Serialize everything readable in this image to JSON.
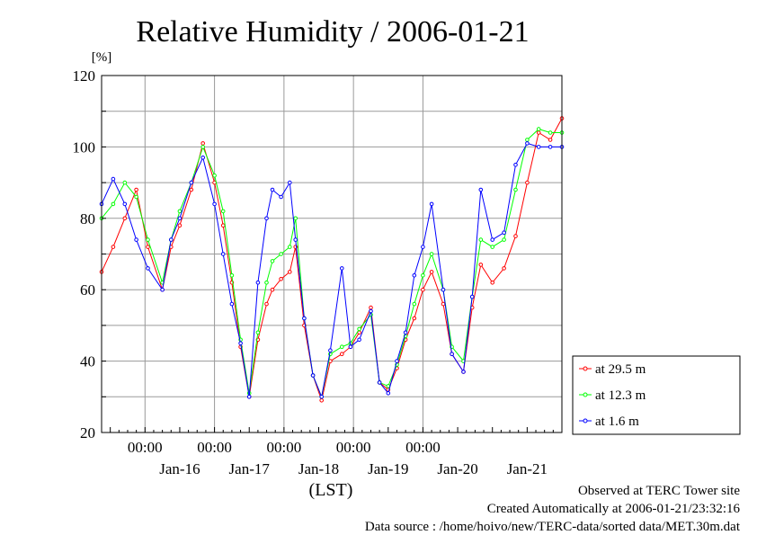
{
  "chart_data": {
    "type": "line",
    "title": "Relative Humidity / 2006-01-21",
    "ylabel": "[%]",
    "xlabel": "(LST)",
    "ylim": [
      20,
      120
    ],
    "yticks": [
      20,
      40,
      60,
      80,
      100,
      120
    ],
    "xlim": [
      "2006-01-15 09:00",
      "2006-01-21 24:00"
    ],
    "time_tick_labels": [
      "00:00",
      "00:00",
      "00:00",
      "00:00",
      "00:00"
    ],
    "day_labels": [
      "Jan-16",
      "Jan-17",
      "Jan-18",
      "Jan-19",
      "Jan-20",
      "Jan-21"
    ],
    "grid": true,
    "legend_position": "bottom-right-outside",
    "series": [
      {
        "name": "at 29.5 m",
        "color": "#ff0000",
        "x": [
          "2006-01-15 09:00",
          "2006-01-15 13:00",
          "2006-01-15 17:00",
          "2006-01-15 21:00",
          "2006-01-16 01:00",
          "2006-01-16 06:00",
          "2006-01-16 09:00",
          "2006-01-16 12:00",
          "2006-01-16 16:00",
          "2006-01-16 20:00",
          "2006-01-17 00:00",
          "2006-01-17 03:00",
          "2006-01-17 06:00",
          "2006-01-17 09:00",
          "2006-01-17 12:00",
          "2006-01-17 15:00",
          "2006-01-17 18:00",
          "2006-01-17 20:00",
          "2006-01-17 23:00",
          "2006-01-18 02:00",
          "2006-01-18 04:00",
          "2006-01-18 07:00",
          "2006-01-18 10:00",
          "2006-01-18 13:00",
          "2006-01-18 16:00",
          "2006-01-18 20:00",
          "2006-01-18 23:00",
          "2006-01-19 02:00",
          "2006-01-19 06:00",
          "2006-01-19 09:00",
          "2006-01-19 12:00",
          "2006-01-19 15:00",
          "2006-01-19 18:00",
          "2006-01-19 21:00",
          "2006-01-20 00:00",
          "2006-01-20 03:00",
          "2006-01-20 07:00",
          "2006-01-20 10:00",
          "2006-01-20 14:00",
          "2006-01-20 17:00",
          "2006-01-20 20:00",
          "2006-01-21 00:00",
          "2006-01-21 04:00",
          "2006-01-21 08:00",
          "2006-01-21 12:00",
          "2006-01-21 16:00",
          "2006-01-21 20:00",
          "2006-01-21 24:00"
        ],
        "y": [
          65,
          72,
          80,
          88,
          72,
          60,
          72,
          78,
          88,
          101,
          90,
          78,
          62,
          44,
          30,
          46,
          56,
          60,
          63,
          65,
          72,
          50,
          36,
          29,
          40,
          42,
          44,
          48,
          55,
          34,
          32,
          38,
          46,
          52,
          60,
          65,
          56,
          42,
          37,
          55,
          67,
          62,
          66,
          75,
          90,
          104,
          102,
          108
        ]
      },
      {
        "name": "at 12.3 m",
        "color": "#00ff00",
        "x": [
          "2006-01-15 09:00",
          "2006-01-15 13:00",
          "2006-01-15 17:00",
          "2006-01-15 21:00",
          "2006-01-16 01:00",
          "2006-01-16 06:00",
          "2006-01-16 09:00",
          "2006-01-16 12:00",
          "2006-01-16 16:00",
          "2006-01-16 20:00",
          "2006-01-17 00:00",
          "2006-01-17 03:00",
          "2006-01-17 06:00",
          "2006-01-17 09:00",
          "2006-01-17 12:00",
          "2006-01-17 15:00",
          "2006-01-17 18:00",
          "2006-01-17 20:00",
          "2006-01-17 23:00",
          "2006-01-18 02:00",
          "2006-01-18 04:00",
          "2006-01-18 07:00",
          "2006-01-18 10:00",
          "2006-01-18 13:00",
          "2006-01-18 16:00",
          "2006-01-18 20:00",
          "2006-01-18 23:00",
          "2006-01-19 02:00",
          "2006-01-19 06:00",
          "2006-01-19 09:00",
          "2006-01-19 12:00",
          "2006-01-19 15:00",
          "2006-01-19 18:00",
          "2006-01-19 21:00",
          "2006-01-20 00:00",
          "2006-01-20 03:00",
          "2006-01-20 07:00",
          "2006-01-20 10:00",
          "2006-01-20 14:00",
          "2006-01-20 17:00",
          "2006-01-20 20:00",
          "2006-01-21 00:00",
          "2006-01-21 04:00",
          "2006-01-21 08:00",
          "2006-01-21 12:00",
          "2006-01-21 16:00",
          "2006-01-21 20:00",
          "2006-01-21 24:00"
        ],
        "y": [
          80,
          84,
          90,
          86,
          74,
          62,
          74,
          82,
          90,
          100,
          92,
          82,
          64,
          46,
          31,
          48,
          62,
          68,
          70,
          72,
          80,
          52,
          36,
          30,
          42,
          44,
          45,
          49,
          53,
          34,
          33,
          39,
          47,
          56,
          64,
          70,
          60,
          44,
          40,
          58,
          74,
          72,
          74,
          88,
          102,
          105,
          104,
          104
        ]
      },
      {
        "name": "at 1.6 m",
        "color": "#0000ff",
        "x": [
          "2006-01-15 09:00",
          "2006-01-15 13:00",
          "2006-01-15 17:00",
          "2006-01-15 21:00",
          "2006-01-16 01:00",
          "2006-01-16 06:00",
          "2006-01-16 09:00",
          "2006-01-16 12:00",
          "2006-01-16 16:00",
          "2006-01-16 20:00",
          "2006-01-17 00:00",
          "2006-01-17 03:00",
          "2006-01-17 06:00",
          "2006-01-17 09:00",
          "2006-01-17 12:00",
          "2006-01-17 15:00",
          "2006-01-17 18:00",
          "2006-01-17 20:00",
          "2006-01-17 23:00",
          "2006-01-18 02:00",
          "2006-01-18 04:00",
          "2006-01-18 07:00",
          "2006-01-18 10:00",
          "2006-01-18 13:00",
          "2006-01-18 16:00",
          "2006-01-18 20:00",
          "2006-01-18 23:00",
          "2006-01-19 02:00",
          "2006-01-19 06:00",
          "2006-01-19 09:00",
          "2006-01-19 12:00",
          "2006-01-19 15:00",
          "2006-01-19 18:00",
          "2006-01-19 21:00",
          "2006-01-20 00:00",
          "2006-01-20 03:00",
          "2006-01-20 07:00",
          "2006-01-20 10:00",
          "2006-01-20 14:00",
          "2006-01-20 17:00",
          "2006-01-20 20:00",
          "2006-01-21 00:00",
          "2006-01-21 04:00",
          "2006-01-21 08:00",
          "2006-01-21 12:00",
          "2006-01-21 16:00",
          "2006-01-21 20:00",
          "2006-01-21 24:00"
        ],
        "y": [
          84,
          91,
          84,
          74,
          66,
          60,
          74,
          80,
          90,
          97,
          84,
          70,
          56,
          45,
          30,
          62,
          80,
          88,
          86,
          90,
          74,
          52,
          36,
          30,
          43,
          66,
          44,
          46,
          54,
          34,
          31,
          40,
          48,
          64,
          72,
          84,
          60,
          42,
          37,
          58,
          88,
          74,
          76,
          95,
          101,
          100,
          100,
          100
        ]
      }
    ]
  },
  "footer": {
    "line1": "Observed at TERC Tower site",
    "line2": "Created Automatically at 2006-01-21/23:32:16",
    "line3": "Data source : /home/hoivo/new/TERC-data/sorted  data/MET.30m.dat"
  }
}
